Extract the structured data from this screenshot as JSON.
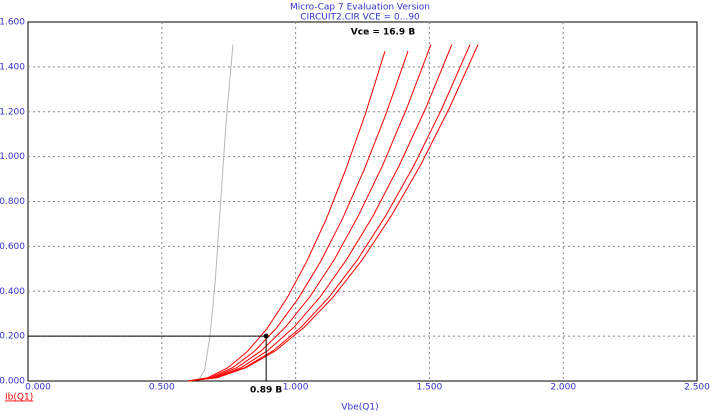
{
  "chart_data": {
    "type": "line",
    "title": "Micro-Cap 7 Evaluation Version",
    "subtitle": "CIRCUIT2.CIR VCE = 0...90",
    "x_label": "Vbe(Q1)",
    "y_label": "Ib(Q1)",
    "xlim": [
      0,
      2.5
    ],
    "ylim": [
      0,
      1.6
    ],
    "xticks": [
      {
        "value": 0,
        "label": "0.000"
      },
      {
        "value": 0.5,
        "label": "0.500"
      },
      {
        "value": 1,
        "label": "1.000"
      },
      {
        "value": 1.5,
        "label": "1.500"
      },
      {
        "value": 2,
        "label": "2.000"
      },
      {
        "value": 2.5,
        "label": "2.500"
      }
    ],
    "yticks": [
      {
        "value": 0,
        "label": "0.000"
      },
      {
        "value": 0.2,
        "label": "0.200"
      },
      {
        "value": 0.4,
        "label": "0.400"
      },
      {
        "value": 0.6,
        "label": "0.600"
      },
      {
        "value": 0.8,
        "label": "0.800"
      },
      {
        "value": 1,
        "label": "1.000"
      },
      {
        "value": 1.2,
        "label": "1.200"
      },
      {
        "value": 1.4,
        "label": "1.400"
      },
      {
        "value": 1.6,
        "label": "1.600"
      }
    ],
    "grid": true,
    "series": [
      {
        "color": "#b8b8b8",
        "x": [
          0.6,
          0.64,
          0.66,
          0.68,
          0.7,
          0.72,
          0.74,
          0.766
        ],
        "values": [
          0,
          0.01,
          0.05,
          0.2,
          0.45,
          0.8,
          1.15,
          1.5
        ]
      },
      {
        "color": "#ff0000",
        "x": [
          0.6,
          0.673,
          0.747,
          0.82,
          0.894,
          0.967,
          1.04,
          1.114,
          1.187,
          1.261,
          1.334
        ],
        "values": [
          0,
          0.015,
          0.059,
          0.132,
          0.235,
          0.368,
          0.529,
          0.72,
          0.941,
          1.191,
          1.47
        ]
      },
      {
        "color": "#ff0000",
        "x": [
          0.6,
          0.682,
          0.764,
          0.846,
          0.928,
          1.01,
          1.092,
          1.174,
          1.256,
          1.338,
          1.42
        ],
        "values": [
          0,
          0.015,
          0.059,
          0.132,
          0.235,
          0.368,
          0.529,
          0.72,
          0.941,
          1.191,
          1.47
        ]
      },
      {
        "color": "#ff0000",
        "x": [
          0.6,
          0.691,
          0.781,
          0.872,
          0.962,
          1.053,
          1.144,
          1.234,
          1.325,
          1.415,
          1.506
        ],
        "values": [
          0,
          0.015,
          0.06,
          0.135,
          0.24,
          0.375,
          0.54,
          0.735,
          0.96,
          1.215,
          1.5
        ]
      },
      {
        "color": "#ff0000",
        "x": [
          0.6,
          0.698,
          0.797,
          0.895,
          0.994,
          1.092,
          1.19,
          1.289,
          1.387,
          1.486,
          1.584
        ],
        "values": [
          0,
          0.015,
          0.06,
          0.135,
          0.24,
          0.375,
          0.54,
          0.735,
          0.96,
          1.215,
          1.5
        ]
      },
      {
        "color": "#ff0000",
        "x": [
          0.6,
          0.705,
          0.81,
          0.916,
          1.021,
          1.126,
          1.231,
          1.336,
          1.442,
          1.547,
          1.652
        ],
        "values": [
          0,
          0.015,
          0.06,
          0.135,
          0.24,
          0.375,
          0.54,
          0.735,
          0.96,
          1.215,
          1.5
        ]
      },
      {
        "color": "#ff0000",
        "x": [
          0.6,
          0.708,
          0.816,
          0.925,
          1.033,
          1.141,
          1.249,
          1.357,
          1.466,
          1.574,
          1.682
        ],
        "values": [
          0,
          0.015,
          0.06,
          0.135,
          0.24,
          0.375,
          0.54,
          0.735,
          0.96,
          1.215,
          1.5
        ]
      }
    ],
    "cursor": {
      "x": 0.89,
      "y": 0.2,
      "label": "0.89 B"
    },
    "annotation": "Vce = 16.9 B"
  }
}
